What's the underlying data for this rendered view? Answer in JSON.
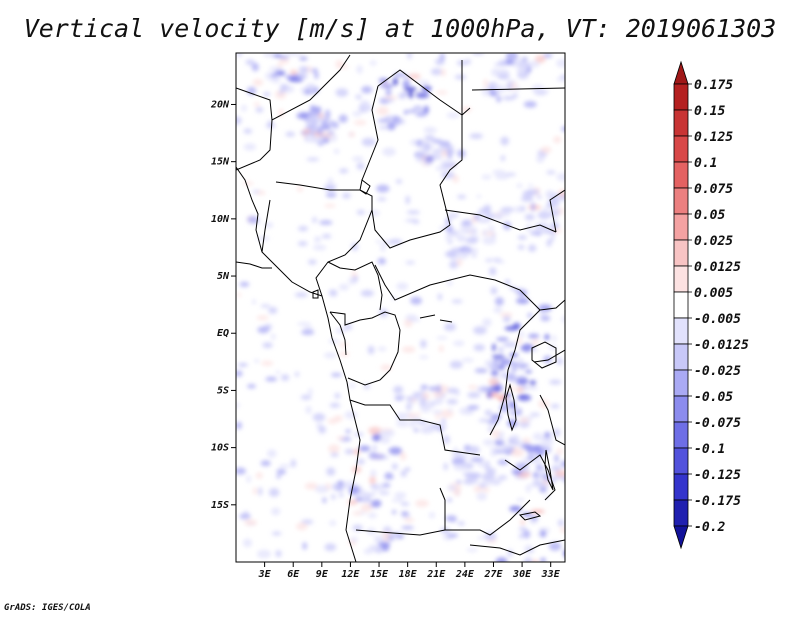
{
  "title": "Vertical velocity [m/s] at 1000hPa, VT: 2019061303",
  "credit": "GrADS: IGES/COLA",
  "map": {
    "lon_range": [
      0,
      34.5
    ],
    "lat_range": [
      -20,
      24.5
    ],
    "lat_ticks": [
      {
        "value": 20,
        "label": "20N"
      },
      {
        "value": 15,
        "label": "15N"
      },
      {
        "value": 10,
        "label": "10N"
      },
      {
        "value": 5,
        "label": "5N"
      },
      {
        "value": 0,
        "label": "EQ"
      },
      {
        "value": -5,
        "label": "5S"
      },
      {
        "value": -10,
        "label": "10S"
      },
      {
        "value": -15,
        "label": "15S"
      }
    ],
    "lon_ticks": [
      {
        "value": 3,
        "label": "3E"
      },
      {
        "value": 6,
        "label": "6E"
      },
      {
        "value": 9,
        "label": "9E"
      },
      {
        "value": 12,
        "label": "12E"
      },
      {
        "value": 15,
        "label": "15E"
      },
      {
        "value": 18,
        "label": "18E"
      },
      {
        "value": 21,
        "label": "21E"
      },
      {
        "value": 24,
        "label": "24E"
      },
      {
        "value": 27,
        "label": "27E"
      },
      {
        "value": 30,
        "label": "30E"
      },
      {
        "value": 33,
        "label": "33E"
      }
    ]
  },
  "colorbar": {
    "levels": [
      "0.175",
      "0.15",
      "0.125",
      "0.1",
      "0.075",
      "0.05",
      "0.025",
      "0.0125",
      "0.005",
      "-0.005",
      "-0.0125",
      "-0.025",
      "-0.05",
      "-0.075",
      "-0.1",
      "-0.125",
      "-0.175",
      "-0.2"
    ],
    "colors": [
      "#a01818",
      "#b42020",
      "#c83434",
      "#d84848",
      "#e46262",
      "#ec8080",
      "#f4a2a2",
      "#f8c4c4",
      "#fce2e2",
      "#ffffff",
      "#e2e2fc",
      "#c8c8f8",
      "#aaaaf4",
      "#8c8cee",
      "#6e6ee6",
      "#5252dc",
      "#3434cc",
      "#2020b0",
      "#12129a"
    ]
  }
}
